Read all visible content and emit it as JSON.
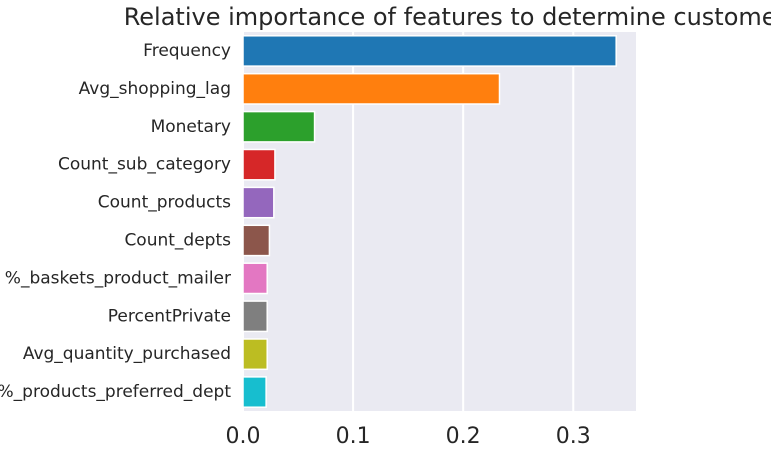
{
  "chart_data": {
    "type": "bar",
    "orientation": "horizontal",
    "title": "Relative importance of features to determine customer churn",
    "xlabel": "",
    "ylabel": "",
    "categories": [
      "Frequency",
      "Avg_shopping_lag",
      "Monetary",
      "Count_sub_category",
      "Count_products",
      "Count_depts",
      "%_baskets_product_mailer",
      "PercentPrivate",
      "Avg_quantity_purchased",
      "%_products_preferred_dept"
    ],
    "values": [
      0.339,
      0.233,
      0.065,
      0.029,
      0.028,
      0.024,
      0.022,
      0.022,
      0.022,
      0.021
    ],
    "colors": [
      "#1f77b4",
      "#ff7f0e",
      "#2ca02c",
      "#d62728",
      "#9467bd",
      "#8c564b",
      "#e377c2",
      "#7f7f7f",
      "#bcbd22",
      "#17becf"
    ],
    "xlim": [
      0,
      0.357
    ],
    "xticks": [
      0.0,
      0.1,
      0.2,
      0.3
    ],
    "xtick_labels": [
      "0.0",
      "0.1",
      "0.2",
      "0.3"
    ],
    "grid": true,
    "background_color": "#eaeaf2",
    "grid_color": "#ffffff",
    "legend": "none"
  }
}
